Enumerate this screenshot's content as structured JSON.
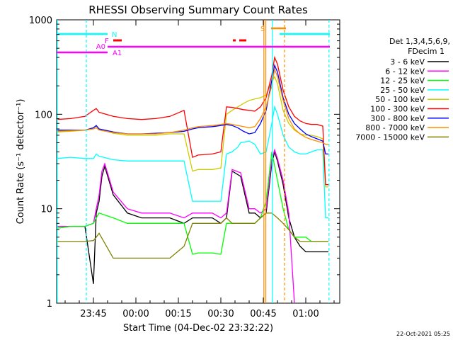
{
  "chart_data": {
    "type": "line",
    "title": "RHESSI Observing Summary Count Rates",
    "xlabel": "Start Time (04-Dec-02 23:32:22)",
    "ylabel": "Count Rate (s⁻¹ detector⁻¹)",
    "y_scale": "log",
    "ylim": [
      1,
      1000
    ],
    "xlim_minutes_from_2332": [
      0,
      38
    ],
    "x_ticks": [
      {
        "label": "23:45",
        "min": 13
      },
      {
        "label": "00:00",
        "min": 28
      },
      {
        "label": "00:15",
        "min": 43
      },
      {
        "label": "00:30",
        "min": 58
      },
      {
        "label": "00:45",
        "min": 73
      },
      {
        "label": "01:00",
        "min": 88
      }
    ],
    "y_ticks": [
      "1",
      "10",
      "100",
      "1000"
    ],
    "legend": {
      "header": [
        "Det 1,3,4,5,6,9,",
        "FDecim 1"
      ],
      "placement": "right"
    },
    "series": [
      {
        "name": "3 - 6 keV",
        "color": "#000000",
        "x": [
          0,
          5,
          10,
          13,
          14,
          15,
          16,
          17,
          20,
          25,
          30,
          35,
          40,
          45,
          48,
          50,
          55,
          58,
          60,
          62,
          65,
          68,
          70,
          72,
          74,
          76,
          77,
          78,
          80,
          82,
          84,
          86,
          88,
          90,
          92,
          94,
          96
        ],
        "y": [
          6.5,
          6.5,
          6.5,
          1.6,
          9,
          12,
          22,
          28,
          14,
          9,
          8,
          8,
          8,
          7,
          8,
          8,
          8,
          7,
          8,
          25,
          22,
          9,
          9,
          8,
          9,
          30,
          40,
          32,
          18,
          8,
          5,
          4,
          3.5,
          3.5,
          3.5,
          3.5,
          3.5
        ]
      },
      {
        "name": "6 - 12 keV",
        "color": "#ff00ff",
        "x": [
          0,
          5,
          10,
          13,
          14,
          15,
          16,
          17,
          20,
          25,
          30,
          35,
          40,
          45,
          48,
          50,
          55,
          58,
          60,
          62,
          65,
          68,
          70,
          72,
          74,
          76,
          77,
          78,
          80,
          82,
          84
        ],
        "y": [
          6.5,
          6.5,
          6.5,
          7,
          10,
          14,
          25,
          30,
          15,
          10,
          9,
          9,
          9,
          8,
          9,
          9,
          9,
          8,
          9,
          26,
          24,
          10,
          10,
          9,
          10,
          33,
          42,
          34,
          20,
          9,
          1
        ]
      },
      {
        "name": "12 - 25 keV",
        "color": "#00ff00",
        "x": [
          0,
          5,
          10,
          13,
          14,
          15,
          20,
          25,
          30,
          35,
          40,
          45,
          48,
          50,
          55,
          58,
          60,
          62,
          65,
          68,
          70,
          72,
          74,
          76,
          78,
          80,
          82,
          84,
          86,
          88,
          90,
          92,
          94,
          96
        ],
        "y": [
          6.2,
          6.5,
          6.5,
          7,
          8,
          9,
          8,
          7,
          7,
          7,
          7,
          7,
          3.3,
          3.4,
          3.4,
          3.3,
          7,
          7,
          7,
          7,
          7,
          8,
          12,
          40,
          20,
          10,
          6,
          5,
          5,
          5,
          4.5,
          4.5,
          4.5,
          4.5
        ]
      },
      {
        "name": "25 - 50 keV",
        "color": "#00ffff",
        "x": [
          0,
          5,
          10,
          13,
          14,
          15,
          20,
          25,
          30,
          35,
          40,
          45,
          48,
          50,
          55,
          58,
          60,
          62,
          64,
          65,
          68,
          70,
          72,
          74,
          76,
          77,
          78,
          80,
          82,
          84,
          86,
          88,
          90,
          92,
          94,
          95,
          96
        ],
        "y": [
          34,
          35,
          34,
          34,
          38,
          36,
          33,
          32,
          32,
          32,
          32,
          32,
          12,
          12,
          12,
          12,
          38,
          40,
          45,
          50,
          52,
          48,
          38,
          40,
          80,
          120,
          100,
          60,
          45,
          40,
          38,
          38,
          40,
          42,
          42,
          8,
          8
        ]
      },
      {
        "name": "50 - 100 keV",
        "color": "#cccc00",
        "x": [
          0,
          5,
          10,
          13,
          14,
          15,
          20,
          25,
          30,
          35,
          40,
          45,
          48,
          50,
          55,
          58,
          60,
          62,
          64,
          66,
          68,
          70,
          72,
          74,
          76,
          77,
          78,
          80,
          82,
          84,
          86,
          88,
          90,
          92,
          94,
          95,
          96
        ],
        "y": [
          65,
          66,
          68,
          72,
          75,
          70,
          63,
          60,
          60,
          60,
          62,
          62,
          25,
          26,
          26,
          27,
          100,
          110,
          120,
          130,
          140,
          145,
          150,
          160,
          220,
          250,
          210,
          110,
          80,
          68,
          62,
          60,
          60,
          58,
          55,
          17,
          17
        ]
      },
      {
        "name": "100 - 300 keV",
        "color": "#ff0000",
        "x": [
          0,
          5,
          10,
          13,
          14,
          15,
          20,
          25,
          30,
          35,
          40,
          45,
          48,
          50,
          55,
          58,
          60,
          62,
          64,
          66,
          68,
          70,
          72,
          74,
          76,
          77,
          78,
          80,
          82,
          84,
          86,
          88,
          90,
          92,
          94,
          95,
          96
        ],
        "y": [
          88,
          90,
          95,
          110,
          115,
          105,
          95,
          90,
          88,
          90,
          95,
          110,
          35,
          37,
          38,
          40,
          120,
          118,
          115,
          112,
          110,
          108,
          120,
          150,
          260,
          400,
          340,
          180,
          120,
          95,
          85,
          80,
          78,
          78,
          75,
          18,
          18
        ]
      },
      {
        "name": "300 - 800 keV",
        "color": "#0000ff",
        "x": [
          0,
          5,
          10,
          13,
          14,
          15,
          20,
          25,
          30,
          35,
          40,
          45,
          48,
          50,
          55,
          58,
          60,
          62,
          64,
          66,
          68,
          70,
          72,
          74,
          76,
          77,
          78,
          80,
          82,
          84,
          86,
          88,
          90,
          92,
          94,
          95,
          96
        ],
        "y": [
          68,
          68,
          68,
          72,
          76,
          70,
          65,
          62,
          62,
          63,
          64,
          66,
          70,
          72,
          74,
          76,
          78,
          76,
          72,
          66,
          62,
          64,
          80,
          110,
          230,
          330,
          280,
          150,
          100,
          80,
          70,
          62,
          58,
          55,
          52,
          38,
          38
        ]
      },
      {
        "name": "800 - 7000 keV",
        "color": "#ff8c00",
        "x": [
          0,
          5,
          10,
          13,
          14,
          15,
          20,
          25,
          30,
          35,
          40,
          45,
          48,
          50,
          55,
          58,
          60,
          62,
          64,
          66,
          68,
          70,
          72,
          74,
          76,
          77,
          78,
          80,
          82,
          84,
          86,
          88,
          90,
          92,
          94,
          95,
          96
        ],
        "y": [
          66,
          67,
          68,
          70,
          72,
          68,
          64,
          62,
          62,
          62,
          64,
          68,
          72,
          74,
          76,
          78,
          80,
          78,
          76,
          74,
          72,
          74,
          90,
          120,
          200,
          300,
          250,
          140,
          90,
          70,
          62,
          57,
          54,
          52,
          50,
          48,
          48
        ]
      },
      {
        "name": "7000 - 15000 keV",
        "color": "#808000",
        "x": [
          0,
          5,
          10,
          13,
          14,
          15,
          20,
          25,
          30,
          35,
          40,
          45,
          48,
          50,
          55,
          58,
          60,
          62,
          64,
          66,
          68,
          70,
          72,
          74,
          76,
          78,
          80,
          82,
          84,
          86,
          88,
          90,
          92,
          94,
          96
        ],
        "y": [
          4.5,
          4.5,
          4.5,
          4.6,
          5,
          5.5,
          3,
          3,
          3,
          3,
          3,
          4,
          7,
          7,
          7,
          7,
          8,
          7,
          7,
          7,
          7,
          7,
          8,
          9,
          9,
          8,
          7,
          6,
          5,
          4.5,
          4.5,
          4.5,
          4.5,
          4.5,
          4.5
        ]
      }
    ],
    "annotations": [
      {
        "text": "F",
        "color": "#ff00ff"
      },
      {
        "text": "N",
        "color": "#00ffff"
      },
      {
        "text": "A0",
        "color": "#ff00ff"
      },
      {
        "text": "A1",
        "color": "#ff00ff"
      },
      {
        "text": "S",
        "color": "#ff8c00"
      }
    ]
  },
  "timestamp": "22-Oct-2021 05:25"
}
